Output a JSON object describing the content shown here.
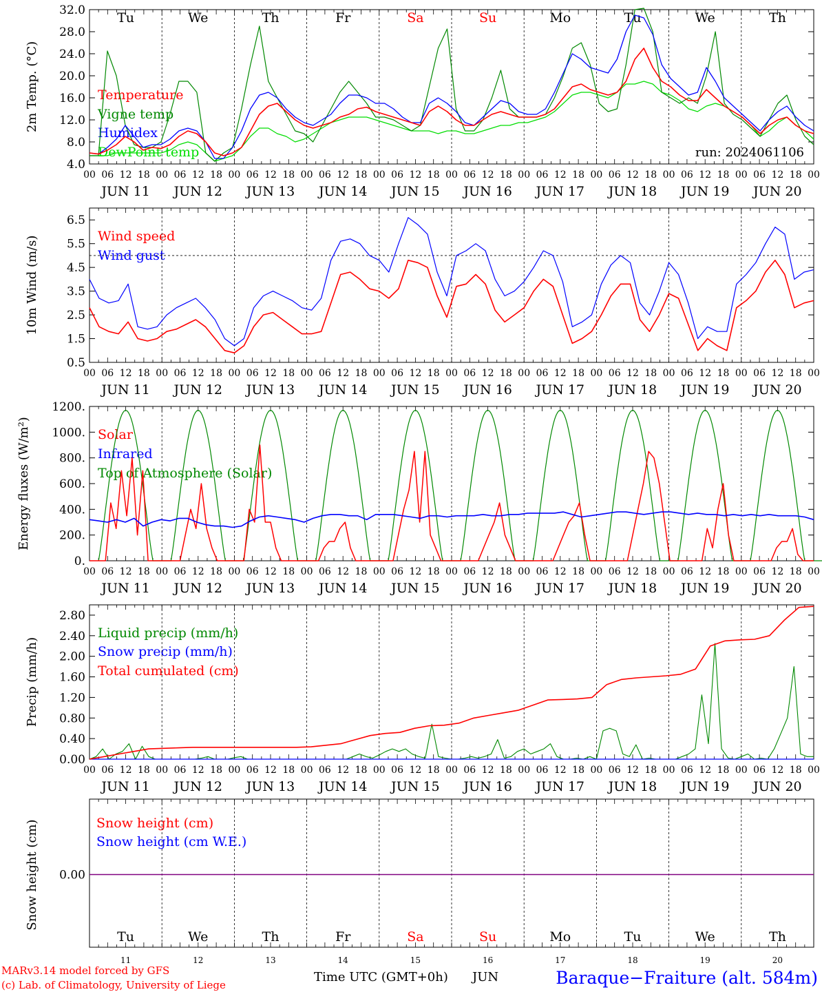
{
  "colors": {
    "red": "#ff0000",
    "green": "#008800",
    "blue": "#0000ff",
    "lightgreen": "#00dd00",
    "purple": "#800080",
    "axis": "#000000",
    "grid": "#000000"
  },
  "days": {
    "weekdays": [
      "Tu",
      "We",
      "Th",
      "Fr",
      "Sa",
      "Su",
      "Mo",
      "Tu",
      "We",
      "Th"
    ],
    "weekend_flags": [
      false,
      false,
      false,
      false,
      true,
      true,
      false,
      false,
      false,
      false
    ],
    "dates": [
      "JUN 11",
      "JUN 12",
      "JUN 13",
      "JUN 14",
      "JUN 15",
      "JUN 16",
      "JUN 17",
      "JUN 18",
      "JUN 19",
      "JUN 20"
    ],
    "day_numbers": [
      "11",
      "12",
      "13",
      "14",
      "15",
      "16",
      "17",
      "18",
      "19",
      "20"
    ],
    "hour_labels": [
      "00",
      "06",
      "12",
      "18"
    ],
    "final_hour_label": "00"
  },
  "footer": {
    "model_line": "MARv3.14 model forced by GFS",
    "copyright_line": "(c) Lab. of Climatology, University of Liege",
    "time_label": "Time UTC (GMT+0h)",
    "month_label": "JUN",
    "station": "Baraque−Fraiture (alt. 584m)"
  },
  "chart_data": [
    {
      "id": "temperature",
      "type": "line",
      "ylabel": "2m Temp. (°C)",
      "ylim": [
        4,
        32
      ],
      "yticks": [
        "4.0",
        "8.0",
        "12.0",
        "16.0",
        "20.0",
        "24.0",
        "28.0",
        "32.0"
      ],
      "annotation": "run: 2024061106",
      "series": [
        {
          "name": "Temperature",
          "color": "#ff0000",
          "y": [
            6,
            5.8,
            6.5,
            7.5,
            9,
            8,
            6.5,
            7,
            6.8,
            7.5,
            9,
            10,
            9.5,
            8,
            6,
            5.5,
            6,
            7,
            10,
            13,
            14.5,
            15,
            13.5,
            12,
            11,
            10.5,
            11,
            11.5,
            12.5,
            13,
            14,
            14.3,
            13.5,
            13,
            12.5,
            12,
            11.5,
            11,
            13.5,
            14.5,
            13.5,
            12,
            11,
            11,
            12,
            13,
            13.5,
            13,
            12.5,
            12.5,
            12.5,
            13,
            14,
            16,
            18,
            18.5,
            17.5,
            17,
            16.5,
            17,
            19,
            23,
            25,
            21.5,
            19,
            18,
            16.5,
            15.5,
            15.5,
            17.5,
            16,
            14.5,
            13.5,
            12.5,
            11,
            9.5,
            11,
            12,
            12.5,
            11,
            10,
            9.5
          ]
        },
        {
          "name": "Vigne temp",
          "color": "#008800",
          "y": [
            5.5,
            5.5,
            24.5,
            20,
            11,
            7.5,
            7,
            7,
            8,
            13,
            19,
            19,
            17,
            6,
            4.5,
            6,
            7,
            14,
            22,
            29,
            19,
            16,
            13,
            10,
            9.5,
            8,
            11,
            14,
            17,
            19,
            17,
            15,
            12.5,
            12.5,
            12,
            11,
            10,
            11,
            18,
            25,
            28.5,
            14,
            10,
            10,
            12,
            16,
            21,
            14,
            12.5,
            12.5,
            12.5,
            13,
            16,
            20,
            25,
            26,
            22,
            15,
            13.5,
            14,
            22,
            32,
            33,
            28,
            17,
            16,
            15,
            16,
            15,
            20,
            28,
            15,
            13,
            12,
            10.5,
            9,
            12,
            15,
            16.5,
            12,
            9,
            7.5
          ]
        },
        {
          "name": "Humidex",
          "color": "#0000ff",
          "y": [
            6,
            5.8,
            7,
            8.5,
            11,
            9,
            7,
            7.5,
            7.5,
            8.5,
            10,
            10.5,
            10,
            8,
            5,
            5,
            7,
            10,
            14,
            16.5,
            17,
            16,
            14,
            12.5,
            11.5,
            11,
            12,
            13,
            15,
            16.5,
            16.5,
            16,
            15,
            15,
            14,
            12.5,
            11.5,
            11.5,
            15,
            16,
            15,
            13.5,
            11.5,
            11,
            12.5,
            14,
            15.5,
            15,
            13.5,
            13,
            13,
            14,
            17,
            20.5,
            24,
            23,
            21.5,
            21,
            20.5,
            23,
            28,
            31,
            30.5,
            27.5,
            22,
            19.5,
            18,
            16.5,
            17,
            21.5,
            19,
            16,
            14.5,
            13,
            11.5,
            10,
            12,
            13.5,
            14.5,
            12.5,
            11,
            10
          ]
        },
        {
          "name": "DewPoint temp",
          "color": "#00dd00",
          "y": [
            5.5,
            5.5,
            5.5,
            6,
            6,
            6,
            6,
            6,
            6,
            6.5,
            7.5,
            8,
            7.5,
            6,
            4.5,
            5,
            5.5,
            7,
            9,
            10.5,
            10.5,
            9.5,
            9,
            8,
            8.5,
            9.5,
            10.5,
            11.5,
            12,
            12.5,
            12.5,
            12.5,
            12,
            11.5,
            11,
            10.5,
            10,
            10,
            10,
            9.5,
            10,
            10,
            9.5,
            9.5,
            10,
            10.5,
            11,
            11,
            11.5,
            11.5,
            12,
            12.5,
            13.5,
            15,
            16.5,
            17,
            17,
            16.5,
            16,
            17,
            18.5,
            18.5,
            19,
            18.5,
            17,
            16.5,
            15.5,
            14,
            13.5,
            14.5,
            15,
            14.5,
            13.5,
            12.5,
            11,
            9,
            10,
            11.5,
            12.5,
            11,
            10,
            8.5
          ]
        }
      ]
    },
    {
      "id": "wind",
      "type": "line",
      "ylabel": "10m Wind (m/s)",
      "ylim": [
        0.5,
        7.0
      ],
      "yticks": [
        "0.5",
        "1.5",
        "2.5",
        "3.5",
        "4.5",
        "5.5",
        "6.5"
      ],
      "reference_line": 5,
      "series": [
        {
          "name": "Wind speed",
          "color": "#ff0000",
          "y": [
            2.8,
            2,
            1.8,
            1.7,
            2.2,
            1.5,
            1.4,
            1.5,
            1.8,
            1.9,
            2.1,
            2.3,
            2,
            1.5,
            1.0,
            0.9,
            1.2,
            2,
            2.5,
            2.6,
            2.3,
            2.0,
            1.7,
            1.7,
            1.8,
            3,
            4.2,
            4.3,
            4.0,
            3.6,
            3.5,
            3.2,
            3.6,
            4.8,
            4.7,
            4.5,
            3.3,
            2.4,
            3.7,
            3.8,
            4.2,
            3.8,
            2.7,
            2.2,
            2.5,
            2.8,
            3.5,
            4,
            3.7,
            2.5,
            1.3,
            1.5,
            1.8,
            2.5,
            3.3,
            3.8,
            3.8,
            2.3,
            1.8,
            2.5,
            3.4,
            3.2,
            2.1,
            1.0,
            1.5,
            1.2,
            1.0,
            2.8,
            3.1,
            3.5,
            4.3,
            4.8,
            4.2,
            2.8,
            3.0,
            3.1
          ]
        },
        {
          "name": "Wind gust",
          "color": "#0000ff",
          "y": [
            4.0,
            3.2,
            3.0,
            3.1,
            3.8,
            2.0,
            1.9,
            2.0,
            2.5,
            2.8,
            3.0,
            3.2,
            2.8,
            2.3,
            1.5,
            1.2,
            1.5,
            2.8,
            3.3,
            3.5,
            3.3,
            3.1,
            2.8,
            2.7,
            3.2,
            4.8,
            5.6,
            5.7,
            5.5,
            5.0,
            4.8,
            4.3,
            5.5,
            6.6,
            6.3,
            5.9,
            4.3,
            3.3,
            5.0,
            5.2,
            5.5,
            5.2,
            4.0,
            3.3,
            3.5,
            3.9,
            4.5,
            5.2,
            5.0,
            3.9,
            2.0,
            2.2,
            2.5,
            3.8,
            4.6,
            5.0,
            4.7,
            3.0,
            2.5,
            3.5,
            4.7,
            4.2,
            3.0,
            1.5,
            2.0,
            1.8,
            1.8,
            3.8,
            4.2,
            4.7,
            5.5,
            6.2,
            5.9,
            4.0,
            4.3,
            4.4
          ]
        }
      ]
    },
    {
      "id": "energy",
      "type": "line",
      "ylabel": "Energy fluxes (W/m²)",
      "ylim": [
        0,
        1200
      ],
      "yticks": [
        "0.",
        "200.",
        "400.",
        "600.",
        "800.",
        "1000.",
        "1200."
      ],
      "series": [
        {
          "name": "Solar",
          "color": "#ff0000",
          "y": [
            0,
            0,
            0,
            0,
            450,
            250,
            700,
            350,
            800,
            200,
            700,
            0,
            0,
            0,
            0,
            0,
            0,
            0,
            200,
            400,
            250,
            600,
            250,
            100,
            0,
            0,
            0,
            0,
            0,
            0,
            400,
            300,
            900,
            300,
            300,
            100,
            0,
            0,
            0,
            0,
            0,
            0,
            0,
            0,
            100,
            150,
            150,
            250,
            300,
            100,
            0,
            0,
            0,
            0,
            0,
            0,
            0,
            0,
            200,
            400,
            550,
            850,
            300,
            850,
            200,
            100,
            0,
            0,
            0,
            0,
            0,
            0,
            0,
            0,
            100,
            200,
            300,
            450,
            200,
            100,
            0,
            0,
            0,
            0,
            0,
            0,
            0,
            0,
            100,
            200,
            300,
            350,
            450,
            200,
            0,
            0,
            0,
            0,
            0,
            0,
            0,
            0,
            200,
            400,
            600,
            850,
            800,
            600,
            300,
            0,
            0,
            0,
            0,
            0,
            0,
            0,
            250,
            100,
            400,
            600,
            200,
            0,
            0,
            0,
            0,
            0,
            0,
            0,
            0,
            100,
            150,
            150,
            250,
            50,
            0,
            0,
            0
          ]
        },
        {
          "name": "Infrared",
          "color": "#0000ff",
          "y": [
            320,
            310,
            300,
            320,
            300,
            330,
            270,
            300,
            320,
            310,
            330,
            330,
            300,
            280,
            270,
            270,
            260,
            270,
            310,
            340,
            350,
            340,
            330,
            320,
            300,
            330,
            350,
            360,
            360,
            350,
            350,
            320,
            360,
            360,
            360,
            350,
            340,
            330,
            350,
            350,
            340,
            350,
            350,
            350,
            360,
            350,
            350,
            360,
            360,
            370,
            370,
            370,
            370,
            380,
            360,
            340,
            350,
            360,
            370,
            380,
            380,
            370,
            360,
            370,
            380,
            380,
            370,
            360,
            370,
            360,
            360,
            350,
            360,
            350,
            360,
            350,
            360,
            350,
            350,
            350,
            340,
            320
          ]
        },
        {
          "name": "Top of Atmosphere (Solar)",
          "color": "#008800",
          "peak": 1170
        }
      ]
    },
    {
      "id": "precip",
      "type": "line",
      "ylabel": "Precip (mm/h)",
      "ylim": [
        0,
        3.0
      ],
      "yticks": [
        "0.00",
        "0.40",
        "0.80",
        "1.20",
        "1.60",
        "2.00",
        "2.40",
        "2.80"
      ],
      "series": [
        {
          "name": "Liquid precip (mm/h)",
          "color": "#008800",
          "y": [
            0,
            0.05,
            0.2,
            0,
            0.1,
            0.15,
            0.3,
            0,
            0.25,
            0.05,
            0,
            0,
            0,
            0,
            0,
            0,
            0,
            0.02,
            0.05,
            0,
            0,
            0,
            0.03,
            0.05,
            0,
            0,
            0,
            0,
            0,
            0,
            0,
            0,
            0,
            0,
            0,
            0,
            0,
            0,
            0,
            0,
            0.05,
            0.1,
            0.05,
            0.02,
            0.08,
            0.15,
            0.2,
            0.15,
            0.2,
            0.1,
            0.05,
            0.02,
            0.68,
            0.05,
            0.02,
            0,
            0,
            0.02,
            0.05,
            0.02,
            0.05,
            0.1,
            0.38,
            0.02,
            0.05,
            0.15,
            0.2,
            0.1,
            0.15,
            0.2,
            0.3,
            0.05,
            0,
            0,
            0.02,
            0,
            0.05,
            0,
            0.55,
            0.6,
            0.55,
            0.1,
            0.05,
            0.28,
            0,
            0.02,
            0,
            0,
            0,
            0,
            0.05,
            0.1,
            0.2,
            1.25,
            0.3,
            2.25,
            0.2,
            0.02,
            0,
            0.05,
            0.1,
            0,
            0.02,
            0,
            0.2,
            0.5,
            0.8,
            1.8,
            0.1,
            0.05,
            0.05
          ]
        },
        {
          "name": "Snow precip (mm/h)",
          "color": "#0000ff",
          "y": [
            0,
            0
          ]
        },
        {
          "name": "Total cumulated (cm)",
          "color": "#ff0000",
          "y": [
            0,
            0.05,
            0.1,
            0.15,
            0.2,
            0.21,
            0.22,
            0.23,
            0.23,
            0.23,
            0.23,
            0.23,
            0.23,
            0.23,
            0.23,
            0.24,
            0.27,
            0.3,
            0.38,
            0.46,
            0.5,
            0.52,
            0.6,
            0.65,
            0.66,
            0.7,
            0.8,
            0.85,
            0.9,
            0.95,
            1.05,
            1.15,
            1.16,
            1.17,
            1.2,
            1.45,
            1.55,
            1.58,
            1.6,
            1.62,
            1.65,
            1.75,
            2.2,
            2.3,
            2.32,
            2.33,
            2.4,
            2.7,
            2.95,
            2.97
          ]
        }
      ]
    },
    {
      "id": "snow",
      "type": "line",
      "ylabel": "Snow height (cm)",
      "yticks": [
        "0.00"
      ],
      "series": [
        {
          "name": "Snow height (cm)",
          "color": "#ff0000",
          "y": [
            0,
            0
          ]
        },
        {
          "name": "Snow height (cm W.E.)",
          "color": "#0000ff",
          "y": [
            0,
            0
          ]
        }
      ]
    }
  ]
}
